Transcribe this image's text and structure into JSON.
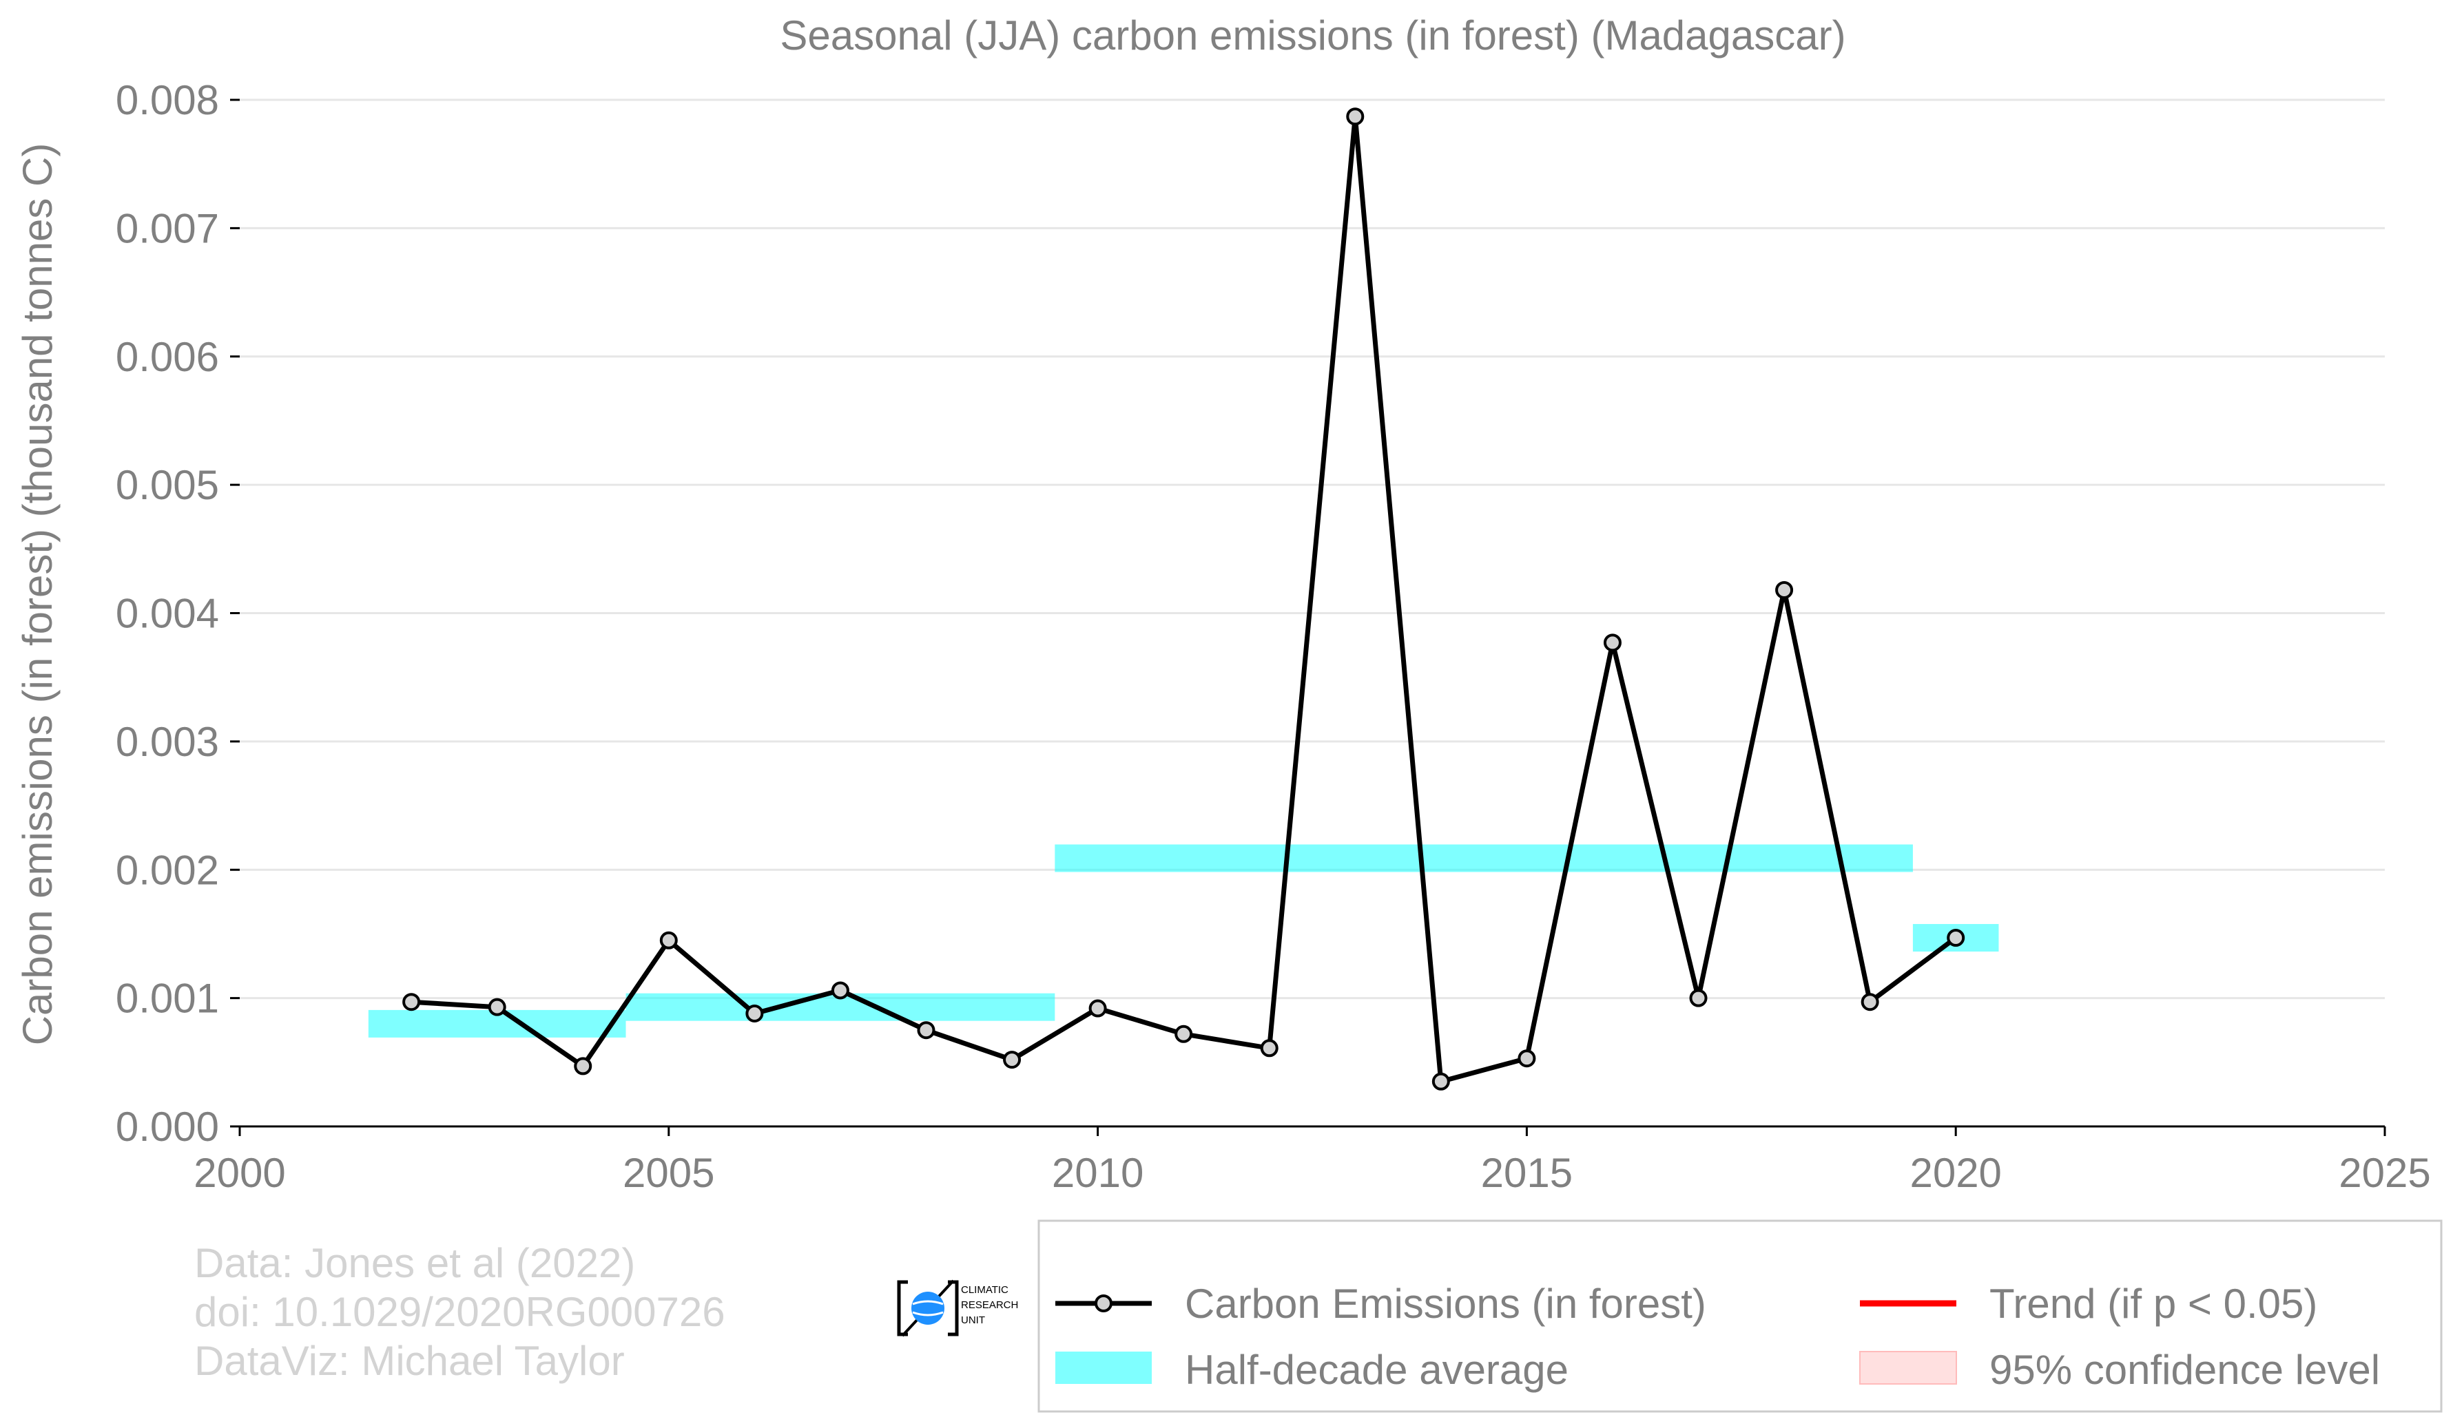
{
  "chart_data": {
    "type": "line",
    "title": "Seasonal (JJA) carbon emissions (in forest) (Madagascar)",
    "xlabel": "",
    "ylabel": "Carbon emissions (in forest) (thousand tonnes C)",
    "xlim": [
      2000,
      2025
    ],
    "ylim": [
      0,
      0.008
    ],
    "x_ticks": [
      "2000",
      "2005",
      "2010",
      "2015",
      "2020",
      "2025"
    ],
    "y_ticks": [
      "0.000",
      "0.001",
      "0.002",
      "0.003",
      "0.004",
      "0.005",
      "0.006",
      "0.007",
      "0.008"
    ],
    "grid": "horizontal",
    "series": [
      {
        "name": "Carbon Emissions (in forest)",
        "color": "#000000",
        "marker_color": "#d3d3d3",
        "x": [
          2002,
          2003,
          2004,
          2005,
          2006,
          2007,
          2008,
          2009,
          2010,
          2011,
          2012,
          2013,
          2014,
          2015,
          2016,
          2017,
          2018,
          2019,
          2020
        ],
        "values": [
          0.00097,
          0.00093,
          0.00047,
          0.00145,
          0.00088,
          0.00106,
          0.00075,
          0.00052,
          0.00092,
          0.00072,
          0.00061,
          0.00787,
          0.00035,
          0.00053,
          0.00377,
          0.001,
          0.00418,
          0.00097,
          0.00147
        ]
      }
    ],
    "half_decade_average": {
      "name": "Half-decade average",
      "color": "#00ffff",
      "bars": [
        {
          "x_start": 2001.5,
          "x_end": 2004.5,
          "value": 0.0008
        },
        {
          "x_start": 2004.5,
          "x_end": 2009.5,
          "value": 0.00093
        },
        {
          "x_start": 2009.5,
          "x_end": 2019.5,
          "value": 0.00209
        },
        {
          "x_start": 2019.5,
          "x_end": 2020.5,
          "value": 0.00147
        }
      ]
    },
    "legend": {
      "placement": "bottom-right",
      "entries": [
        {
          "label": "Carbon Emissions (in forest)",
          "kind": "line-marker",
          "color": "#000000"
        },
        {
          "label": "Trend (if p < 0.05)",
          "kind": "line",
          "color": "#ff0000"
        },
        {
          "label": "Half-decade average",
          "kind": "patch",
          "color": "#00ffff"
        },
        {
          "label": "95% confidence level",
          "kind": "patch",
          "color": "#ffcccc"
        }
      ]
    }
  },
  "credits": {
    "line1": "Data: Jones et al (2022)",
    "line2": "doi: 10.1029/2020RG000726",
    "line3": "DataViz: Michael Taylor"
  },
  "logo": {
    "line1": "CLIMATIC",
    "line2": "RESEARCH",
    "line3": "UNIT",
    "icon": "globe-icon"
  },
  "colors": {
    "text": "#808080",
    "credits": "#d3d3d3",
    "grid": "#e6e6e6",
    "axis": "#000000"
  }
}
